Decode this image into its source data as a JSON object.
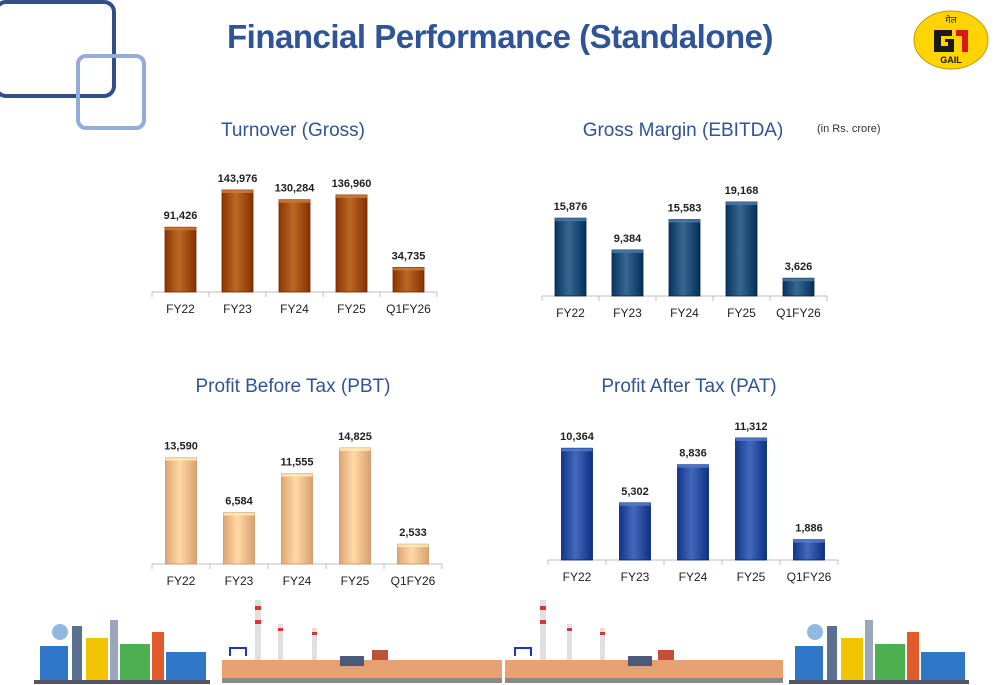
{
  "page": {
    "title": "Financial Performance (Standalone)",
    "unit_note": "(in  Rs. crore)",
    "logo_text": "GAIL",
    "logo_hindi": "गेल"
  },
  "colors": {
    "title": "#2f5497",
    "turnover": "#a34f0c",
    "ebitda": "#1f4e79",
    "pbt": "#f7c08e",
    "pat": "#2a4fa3",
    "logo_yellow": "#ffd400",
    "logo_red": "#d7191c"
  },
  "chart_data": [
    {
      "id": "turnover",
      "type": "bar",
      "title": "Turnover (Gross)",
      "categories": [
        "FY22",
        "FY23",
        "FY24",
        "FY25",
        "Q1FY26"
      ],
      "values": [
        91426,
        143976,
        130284,
        136960,
        34735
      ],
      "value_labels": [
        "91,426",
        "143,976",
        "130,284",
        "136,960",
        "34,735"
      ],
      "color": "#a34f0c"
    },
    {
      "id": "ebitda",
      "type": "bar",
      "title": "Gross Margin (EBITDA)",
      "categories": [
        "FY22",
        "FY23",
        "FY24",
        "FY25",
        "Q1FY26"
      ],
      "values": [
        15876,
        9384,
        15583,
        19168,
        3626
      ],
      "value_labels": [
        "15,876",
        "9,384",
        "15,583",
        "19,168",
        "3,626"
      ],
      "color": "#1f4e79"
    },
    {
      "id": "pbt",
      "type": "bar",
      "title": "Profit Before Tax (PBT)",
      "categories": [
        "FY22",
        "FY23",
        "FY24",
        "FY25",
        "Q1FY26"
      ],
      "values": [
        13590,
        6584,
        11555,
        14825,
        2533
      ],
      "value_labels": [
        "13,590",
        "6,584",
        "11,555",
        "14,825",
        "2,533"
      ],
      "color": "#f7c08e"
    },
    {
      "id": "pat",
      "type": "bar",
      "title": "Profit After Tax (PAT)",
      "categories": [
        "FY22",
        "FY23",
        "FY24",
        "FY25",
        "Q1FY26"
      ],
      "values": [
        10364,
        5302,
        8836,
        11312,
        1886
      ],
      "value_labels": [
        "10,364",
        "5,302",
        "8,836",
        "11,312",
        "1,886"
      ],
      "color": "#2a4fa3"
    }
  ]
}
